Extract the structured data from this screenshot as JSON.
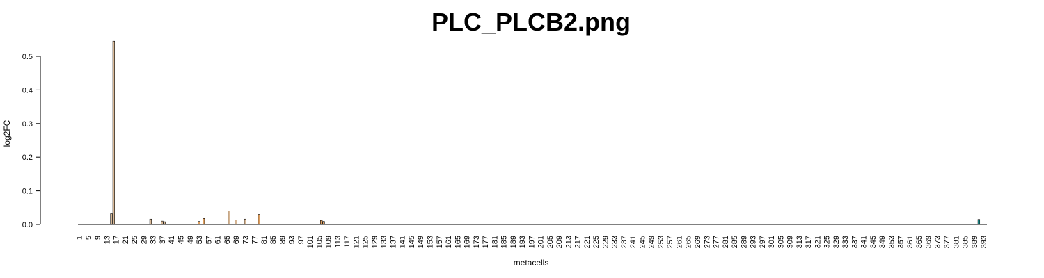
{
  "chart_data": {
    "type": "bar",
    "title": "PLC_PLCB2.png",
    "xlabel": "metacells",
    "ylabel": "log2FC",
    "ylim": [
      0,
      0.55
    ],
    "yticks": [
      "0.0",
      "0.1",
      "0.2",
      "0.3",
      "0.4",
      "0.5"
    ],
    "x_count": 394,
    "x_tick_start": 1,
    "x_tick_step": 4,
    "grid": false,
    "legend": "none",
    "colors": {
      "default_bar": "#d8b896",
      "orange_bar": "#e0a060",
      "cyan_bar": "#22c4c4",
      "axis": "#000000"
    },
    "bars": [
      {
        "x": 15,
        "value": 0.032,
        "color": "#d8b896"
      },
      {
        "x": 16,
        "value": 0.545,
        "color": "#d8b896"
      },
      {
        "x": 32,
        "value": 0.016,
        "color": "#d8b896"
      },
      {
        "x": 37,
        "value": 0.01,
        "color": "#d8b896"
      },
      {
        "x": 38,
        "value": 0.008,
        "color": "#d8b896"
      },
      {
        "x": 53,
        "value": 0.009,
        "color": "#e0a060"
      },
      {
        "x": 55,
        "value": 0.018,
        "color": "#e0a060"
      },
      {
        "x": 66,
        "value": 0.04,
        "color": "#d8b896"
      },
      {
        "x": 69,
        "value": 0.013,
        "color": "#d8b896"
      },
      {
        "x": 73,
        "value": 0.016,
        "color": "#d8b896"
      },
      {
        "x": 79,
        "value": 0.03,
        "color": "#e0a060"
      },
      {
        "x": 106,
        "value": 0.012,
        "color": "#e0a060"
      },
      {
        "x": 107,
        "value": 0.009,
        "color": "#e0a060"
      },
      {
        "x": 391,
        "value": 0.015,
        "color": "#22c4c4"
      }
    ]
  }
}
